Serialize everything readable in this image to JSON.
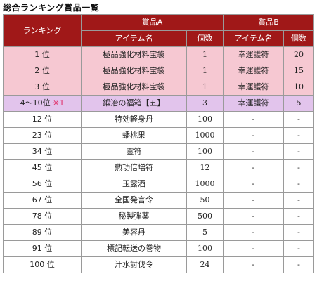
{
  "title": "総合ランキング賞品一覧",
  "headers": {
    "ranking": "ランキング",
    "prize_a": "賞品A",
    "prize_b": "賞品B",
    "item_name": "アイテム名",
    "count": "個数"
  },
  "rows": [
    {
      "rank": "1 位",
      "note": "",
      "a_item": "極品強化材料宝袋",
      "a_count": "1",
      "b_item": "幸運護符",
      "b_count": "20"
    },
    {
      "rank": "2 位",
      "note": "",
      "a_item": "極品強化材料宝袋",
      "a_count": "1",
      "b_item": "幸運護符",
      "b_count": "15"
    },
    {
      "rank": "3 位",
      "note": "",
      "a_item": "極品強化材料宝袋",
      "a_count": "1",
      "b_item": "幸運護符",
      "b_count": "10"
    },
    {
      "rank": "4～10位",
      "note": "※1",
      "a_item": "鍛冶の福箱【五】",
      "a_count": "3",
      "b_item": "幸運護符",
      "b_count": "5"
    },
    {
      "rank": "12 位",
      "note": "",
      "a_item": "特効軽身丹",
      "a_count": "100",
      "b_item": "-",
      "b_count": "-"
    },
    {
      "rank": "23 位",
      "note": "",
      "a_item": "蟠桃果",
      "a_count": "1000",
      "b_item": "-",
      "b_count": "-"
    },
    {
      "rank": "34 位",
      "note": "",
      "a_item": "霊符",
      "a_count": "100",
      "b_item": "-",
      "b_count": "-"
    },
    {
      "rank": "45 位",
      "note": "",
      "a_item": "勲功倍増符",
      "a_count": "12",
      "b_item": "-",
      "b_count": "-"
    },
    {
      "rank": "56 位",
      "note": "",
      "a_item": "玉露酒",
      "a_count": "1000",
      "b_item": "-",
      "b_count": "-"
    },
    {
      "rank": "67 位",
      "note": "",
      "a_item": "全国発言令",
      "a_count": "50",
      "b_item": "-",
      "b_count": "-"
    },
    {
      "rank": "78 位",
      "note": "",
      "a_item": "秘製弾薬",
      "a_count": "500",
      "b_item": "-",
      "b_count": "-"
    },
    {
      "rank": "89 位",
      "note": "",
      "a_item": "美容丹",
      "a_count": "5",
      "b_item": "-",
      "b_count": "-"
    },
    {
      "rank": "91 位",
      "note": "",
      "a_item": "標記転送の巻物",
      "a_count": "100",
      "b_item": "-",
      "b_count": "-"
    },
    {
      "rank": "100 位",
      "note": "",
      "a_item": "汗水討伐令",
      "a_count": "24",
      "b_item": "-",
      "b_count": "-"
    }
  ],
  "colors": {
    "header_bg": "#a01818",
    "top_row_bg": "#f6c8d2",
    "special_row_bg": "#e2c4ec",
    "note_color": "#e0306a"
  }
}
